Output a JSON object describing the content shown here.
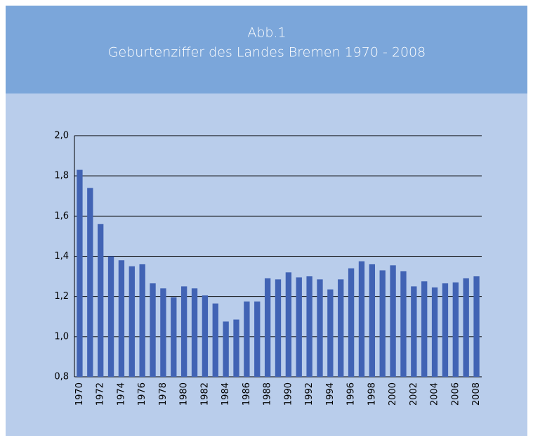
{
  "chart_data": {
    "type": "bar",
    "title": "Abb.1",
    "subtitle": "Geburtenziffer des Landes Bremen 1970 - 2008",
    "categories": [
      "1970",
      null,
      "1972",
      null,
      "1974",
      null,
      "1976",
      null,
      "1978",
      null,
      "1980",
      null,
      "1982",
      null,
      "1984",
      null,
      "1986",
      null,
      "1988",
      null,
      "1990",
      null,
      "1992",
      null,
      "1994",
      null,
      "1996",
      null,
      "1998",
      null,
      "2000",
      null,
      "2002",
      null,
      "2004",
      null,
      "2006",
      null,
      "2008"
    ],
    "values": [
      1.83,
      1.74,
      1.56,
      1.4,
      1.38,
      1.35,
      1.36,
      1.265,
      1.24,
      1.195,
      1.25,
      1.24,
      1.205,
      1.165,
      1.075,
      1.085,
      1.175,
      1.175,
      1.29,
      1.285,
      1.32,
      1.295,
      1.3,
      1.285,
      1.235,
      1.285,
      1.34,
      1.375,
      1.36,
      1.33,
      1.355,
      1.325,
      1.25,
      1.275,
      1.245,
      1.265,
      1.27,
      1.29,
      1.3
    ],
    "color": "#4163b4",
    "ylim": [
      0.8,
      2.0
    ],
    "yticks": [
      {
        "value": 0.8,
        "label": "0,8"
      },
      {
        "value": 1.0,
        "label": "1,0"
      },
      {
        "value": 1.2,
        "label": "1,2"
      },
      {
        "value": 1.4,
        "label": "1,4"
      },
      {
        "value": 1.6,
        "label": "1,6"
      },
      {
        "value": 1.8,
        "label": "1,8"
      },
      {
        "value": 2.0,
        "label": "2,0"
      }
    ],
    "grid": true
  }
}
